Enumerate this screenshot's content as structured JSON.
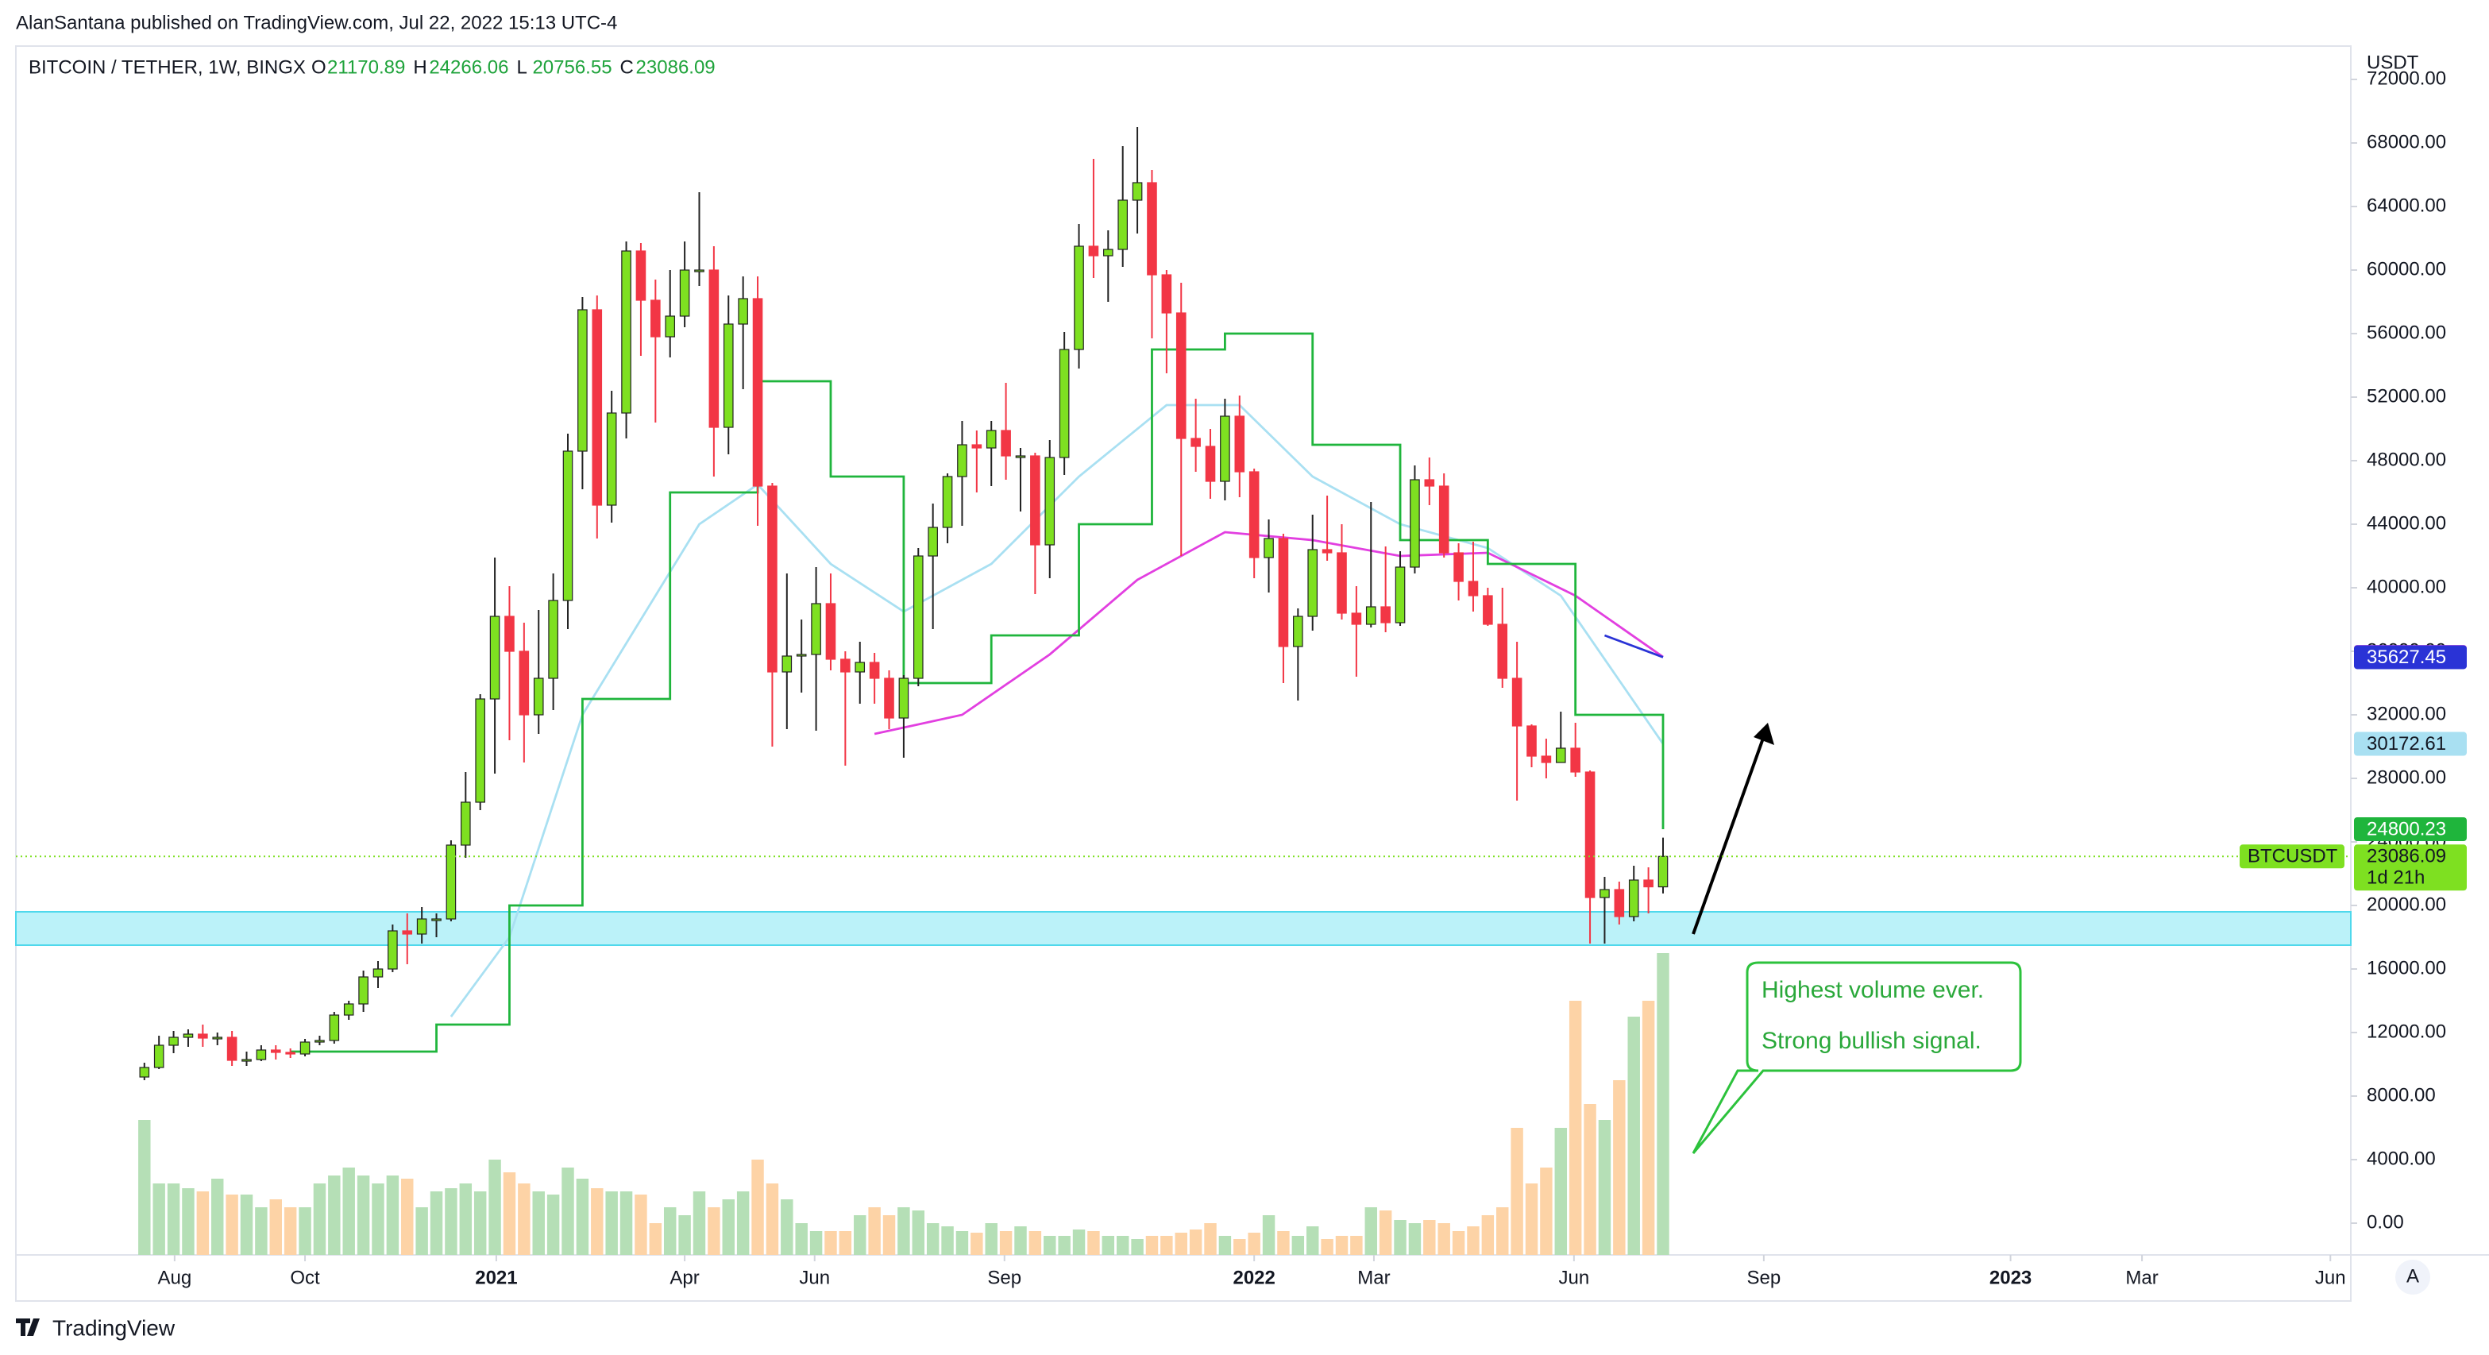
{
  "chart_data": {
    "type": "candlestick",
    "publisher": "AlanSantana published on TradingView.com, Jul 22, 2022 15:13 UTC-4",
    "title": "BITCOIN / TETHER, 1W, BINGX",
    "ohlc_labels": [
      "O",
      "H",
      "L",
      "C"
    ],
    "unit": "USDT",
    "symbol_tag": "BTCUSDT",
    "countdown": "1d 21h",
    "brand": "TradingView",
    "scale_button": "A",
    "annotation": [
      "Highest volume ever.",
      "Strong bullish signal."
    ],
    "up_color": "#7ee021",
    "down_color": "#f23645",
    "volume_up_color": "#b5dfb6",
    "volume_down_color": "#fdd3a6",
    "xlim": [
      -8.8,
      151.1
    ],
    "ylim": [
      -2000,
      74000
    ],
    "grid": false,
    "xticks": [
      {
        "value": 2.07,
        "label": "Aug"
      },
      {
        "value": 11,
        "label": "Oct"
      },
      {
        "value": 24.1,
        "label": "2021"
      },
      {
        "value": 37,
        "label": "Apr"
      },
      {
        "value": 45.9,
        "label": "Jun"
      },
      {
        "value": 58.9,
        "label": "Sep"
      },
      {
        "value": 76,
        "label": "2022"
      },
      {
        "value": 84.2,
        "label": "Mar"
      },
      {
        "value": 97.9,
        "label": "Jun"
      },
      {
        "value": 110.9,
        "label": "Sep"
      },
      {
        "value": 127.8,
        "label": "2023"
      },
      {
        "value": 136.8,
        "label": "Mar"
      },
      {
        "value": 149.7,
        "label": "Jun"
      }
    ],
    "yticks": [
      {
        "value": 0,
        "label": "0.00"
      },
      {
        "value": 4000,
        "label": "4000.00"
      },
      {
        "value": 8000,
        "label": "8000.00"
      },
      {
        "value": 12000,
        "label": "12000.00"
      },
      {
        "value": 16000,
        "label": "16000.00"
      },
      {
        "value": 20000,
        "label": "20000.00"
      },
      {
        "value": 24000,
        "label": "24000.00"
      },
      {
        "value": 28000,
        "label": "28000.00"
      },
      {
        "value": 32000,
        "label": "32000.00"
      },
      {
        "value": 36000,
        "label": "36000.00"
      },
      {
        "value": 40000,
        "label": "40000.00"
      },
      {
        "value": 44000,
        "label": "44000.00"
      },
      {
        "value": 48000,
        "label": "48000.00"
      },
      {
        "value": 52000,
        "label": "52000.00"
      },
      {
        "value": 56000,
        "label": "56000.00"
      },
      {
        "value": 60000,
        "label": "60000.00"
      },
      {
        "value": 64000,
        "label": "64000.00"
      },
      {
        "value": 68000,
        "label": "68000.00"
      },
      {
        "value": 72000,
        "label": "72000.00"
      }
    ],
    "zone": {
      "from": 17500,
      "to": 19600,
      "color": "#8eeaf5"
    },
    "open": [
      9200,
      9800,
      11200,
      11700,
      11900,
      11650,
      11700,
      10250,
      10300,
      10900,
      10750,
      10650,
      11400,
      11500,
      13100,
      13800,
      15500,
      16000,
      18400,
      18200,
      19150,
      19150,
      23800,
      26500,
      33000,
      38200,
      36000,
      32000,
      34300,
      39200,
      48600,
      57500,
      45200,
      51000,
      61200,
      58100,
      55800,
      57100,
      60000,
      60000,
      50100,
      56600,
      58200,
      46400,
      34700,
      35700,
      35800,
      39000,
      35500,
      34700,
      35300,
      34300,
      31800,
      34300,
      42000,
      43800,
      47000,
      49000,
      48800,
      49900,
      48300,
      48300,
      42700,
      48200,
      55000,
      61500,
      60900,
      61300,
      64400,
      65500,
      59700,
      57300,
      49400,
      48900,
      46700,
      50800,
      47300,
      41900,
      43100,
      36300,
      38200,
      42400,
      42200,
      38400,
      37700,
      38800,
      37800,
      41300,
      46800,
      46400,
      42200,
      40400,
      39500,
      37700,
      34300,
      31300,
      29400,
      29000,
      29900,
      28400,
      20500,
      21000,
      19300,
      21600,
      21170.89
    ],
    "high": [
      10100,
      11800,
      12100,
      12200,
      12500,
      12000,
      12100,
      10800,
      11200,
      11200,
      11000,
      11600,
      11800,
      13300,
      14000,
      15900,
      16500,
      18800,
      19500,
      19900,
      19500,
      24100,
      28400,
      33300,
      41900,
      40100,
      37800,
      38600,
      40900,
      49700,
      58300,
      58400,
      52400,
      61800,
      61700,
      59400,
      60000,
      61800,
      64900,
      61500,
      58400,
      59600,
      59600,
      46600,
      40900,
      38000,
      41300,
      40900,
      36000,
      36600,
      35900,
      34800,
      34500,
      42500,
      45300,
      47200,
      50500,
      49900,
      50500,
      52900,
      48800,
      48500,
      49300,
      56100,
      62900,
      67000,
      62500,
      67800,
      69000,
      66300,
      60000,
      59200,
      51900,
      50000,
      51900,
      52100,
      47500,
      44300,
      43400,
      38700,
      44600,
      45800,
      44000,
      40100,
      45400,
      42600,
      42300,
      47700,
      48200,
      47200,
      42800,
      42900,
      40000,
      40000,
      36600,
      31400,
      30500,
      32200,
      31500,
      28500,
      21800,
      21500,
      22500,
      22400,
      24266.06
    ],
    "low": [
      9000,
      9700,
      10700,
      11100,
      11100,
      11200,
      9900,
      9900,
      10200,
      10300,
      10400,
      10500,
      11200,
      11300,
      12800,
      13300,
      14800,
      15800,
      16300,
      17600,
      18000,
      19000,
      23000,
      26000,
      28300,
      30400,
      29000,
      30800,
      32300,
      37400,
      46200,
      43100,
      44100,
      49400,
      54600,
      50400,
      54500,
      56400,
      59000,
      47000,
      48400,
      52500,
      43900,
      30000,
      31100,
      33400,
      31000,
      34800,
      28800,
      32700,
      32700,
      31100,
      29300,
      33800,
      37400,
      42800,
      43900,
      46000,
      46400,
      46800,
      44800,
      39600,
      40600,
      47100,
      53800,
      59500,
      58000,
      60200,
      62300,
      55700,
      53500,
      42000,
      47300,
      45600,
      45500,
      45700,
      40600,
      39700,
      34000,
      32900,
      37300,
      41700,
      38000,
      34400,
      37500,
      37200,
      37600,
      40900,
      45200,
      41900,
      39200,
      38500,
      37600,
      33700,
      26600,
      28700,
      28000,
      29000,
      28100,
      17600,
      17600,
      18800,
      19000,
      19500,
      20756.55
    ],
    "close": [
      9800,
      11200,
      11700,
      11900,
      11650,
      11700,
      10250,
      10300,
      10900,
      10750,
      10650,
      11400,
      11500,
      13100,
      13800,
      15500,
      16000,
      18400,
      18200,
      19150,
      19150,
      23800,
      26500,
      33000,
      38200,
      36000,
      32000,
      34300,
      39200,
      48600,
      57500,
      45200,
      51000,
      61200,
      58100,
      55800,
      57100,
      60000,
      60000,
      50100,
      56600,
      58200,
      46400,
      34700,
      35700,
      35800,
      39000,
      35500,
      34700,
      35300,
      34300,
      31800,
      34300,
      42000,
      43800,
      47000,
      49000,
      48800,
      49900,
      48300,
      48300,
      42700,
      48200,
      55000,
      61500,
      60900,
      61300,
      64400,
      65500,
      59700,
      57300,
      49400,
      48900,
      46700,
      50800,
      47300,
      41900,
      43100,
      36300,
      38200,
      42400,
      42200,
      38400,
      37700,
      38800,
      37800,
      41300,
      46800,
      46400,
      42200,
      40400,
      39500,
      37700,
      34300,
      31300,
      29400,
      29000,
      29900,
      28400,
      20500,
      21000,
      19300,
      21600,
      21170.89,
      23086.09
    ],
    "volume": [
      85,
      45,
      45,
      42,
      40,
      48,
      38,
      38,
      30,
      35,
      30,
      30,
      45,
      50,
      55,
      50,
      45,
      50,
      48,
      30,
      40,
      42,
      45,
      40,
      60,
      52,
      45,
      40,
      38,
      55,
      48,
      42,
      40,
      40,
      38,
      20,
      30,
      25,
      40,
      30,
      35,
      40,
      60,
      45,
      35,
      20,
      15,
      15,
      15,
      25,
      30,
      25,
      30,
      28,
      20,
      18,
      15,
      14,
      20,
      15,
      18,
      15,
      12,
      12,
      16,
      15,
      12,
      12,
      10,
      12,
      12,
      14,
      16,
      20,
      12,
      10,
      14,
      25,
      15,
      12,
      18,
      10,
      12,
      12,
      30,
      28,
      22,
      20,
      22,
      20,
      15,
      18,
      25,
      30,
      80,
      45,
      55,
      80,
      160,
      95,
      85,
      110,
      150,
      160,
      190
    ],
    "lines": [
      {
        "color": "#a9e0f2",
        "x": [
          21,
          25,
          30,
          38,
          42,
          47,
          52,
          58,
          64,
          70,
          75,
          80,
          86,
          92,
          97,
          104
        ],
        "values": [
          13000,
          18000,
          32000,
          44000,
          46500,
          41500,
          38500,
          41500,
          47000,
          51500,
          51500,
          47000,
          44000,
          42500,
          39500,
          30172.61
        ]
      },
      {
        "color": "#e23fe0",
        "x": [
          50,
          56,
          62,
          68,
          74,
          80,
          86,
          92,
          98,
          104
        ],
        "values": [
          30800,
          32000,
          35800,
          40500,
          43500,
          43000,
          42000,
          42200,
          39500,
          35646.81
        ]
      },
      {
        "color": "#2a33d6",
        "x": [
          100,
          104
        ],
        "values": [
          37000,
          35627.45
        ]
      },
      {
        "color": "#1fb53c",
        "step": true,
        "x": [
          10,
          20,
          25,
          30,
          36,
          42,
          47,
          52,
          58,
          64,
          69,
          74,
          80,
          86,
          92,
          98,
          104
        ],
        "values": [
          10800,
          12500,
          20000,
          33000,
          46000,
          53000,
          47000,
          34000,
          37000,
          44000,
          55000,
          56000,
          49000,
          43000,
          41500,
          32000,
          24800.23
        ]
      }
    ]
  }
}
